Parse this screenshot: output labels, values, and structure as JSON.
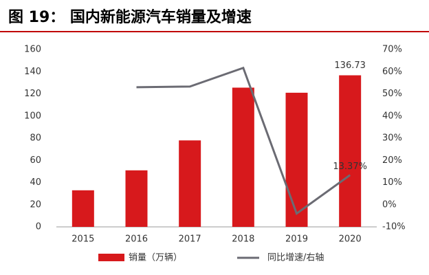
{
  "chart_data": {
    "type": "combo",
    "title": "图 19： 国内新能源汽车销量及增速",
    "categories": [
      "2015",
      "2016",
      "2017",
      "2018",
      "2019",
      "2020"
    ],
    "series": [
      {
        "name": "销量（万辆）",
        "type": "bar",
        "color": "#d7191c",
        "values": [
          33,
          51,
          78,
          125.6,
          121,
          136.73
        ],
        "value_labels": [
          null,
          null,
          null,
          null,
          null,
          "136.73"
        ]
      },
      {
        "name": "同比增速/右轴",
        "type": "line",
        "axis": "y2",
        "color": "#6b6b73",
        "values": [
          null,
          53,
          53.3,
          61.7,
          -4,
          13.37
        ],
        "value_labels": [
          null,
          null,
          null,
          null,
          null,
          "13.37%"
        ]
      }
    ],
    "ylim": [
      0,
      160
    ],
    "yticks": [
      0,
      20,
      40,
      60,
      80,
      100,
      120,
      140,
      160
    ],
    "y2lim": [
      -10,
      70
    ],
    "y2ticks": [
      {
        "value": -10,
        "label": "-10%"
      },
      {
        "value": 0,
        "label": "0%"
      },
      {
        "value": 10,
        "label": "10%"
      },
      {
        "value": 20,
        "label": "20%"
      },
      {
        "value": 30,
        "label": "30%"
      },
      {
        "value": 40,
        "label": "40%"
      },
      {
        "value": 50,
        "label": "50%"
      },
      {
        "value": 60,
        "label": "60%"
      },
      {
        "value": 70,
        "label": "70%"
      }
    ],
    "grid": false,
    "legend": "bottom"
  }
}
